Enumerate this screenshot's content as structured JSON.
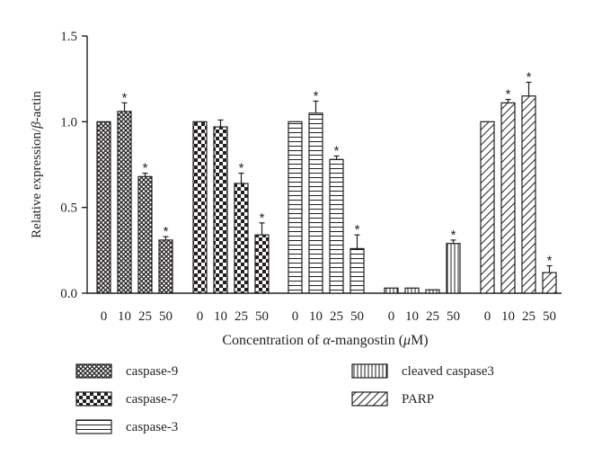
{
  "chart_data": {
    "type": "bar",
    "ylabel_parts": [
      "Relative expression/",
      "β",
      "-actin"
    ],
    "xlabel_parts": [
      "Concentration of ",
      "α",
      "-mangostin (",
      "μ",
      "M)"
    ],
    "ylim": [
      0,
      1.5
    ],
    "yticks": [
      "0.0",
      "0.5",
      "1.0",
      "1.5"
    ],
    "categories": [
      "0",
      "10",
      "25",
      "50"
    ],
    "series": [
      {
        "name": "caspase-9",
        "pattern": "crosshatch",
        "values": [
          1.0,
          1.06,
          0.68,
          0.31
        ],
        "errors": [
          0,
          0.05,
          0.02,
          0.02
        ],
        "significant": [
          false,
          true,
          true,
          true
        ]
      },
      {
        "name": "caspase-7",
        "pattern": "checker",
        "values": [
          1.0,
          0.97,
          0.64,
          0.34
        ],
        "errors": [
          0,
          0.04,
          0.06,
          0.07
        ],
        "significant": [
          false,
          false,
          true,
          true
        ]
      },
      {
        "name": "caspase-3",
        "pattern": "horizontal",
        "values": [
          1.0,
          1.05,
          0.78,
          0.26
        ],
        "errors": [
          0,
          0.07,
          0.02,
          0.08
        ],
        "significant": [
          false,
          true,
          true,
          true
        ]
      },
      {
        "name": "cleaved caspase3",
        "pattern": "vertical",
        "values": [
          0.03,
          0.03,
          0.02,
          0.29
        ],
        "errors": [
          0,
          0,
          0,
          0.02
        ],
        "significant": [
          false,
          false,
          false,
          true
        ]
      },
      {
        "name": "PARP",
        "pattern": "diagonal",
        "values": [
          1.0,
          1.11,
          1.15,
          0.12
        ],
        "errors": [
          0,
          0.02,
          0.08,
          0.04
        ],
        "significant": [
          false,
          true,
          true,
          true
        ]
      }
    ],
    "significance_marker": "*",
    "legend_position": "bottom"
  },
  "colors": {
    "ink": "#231f20",
    "background": "#ffffff"
  }
}
